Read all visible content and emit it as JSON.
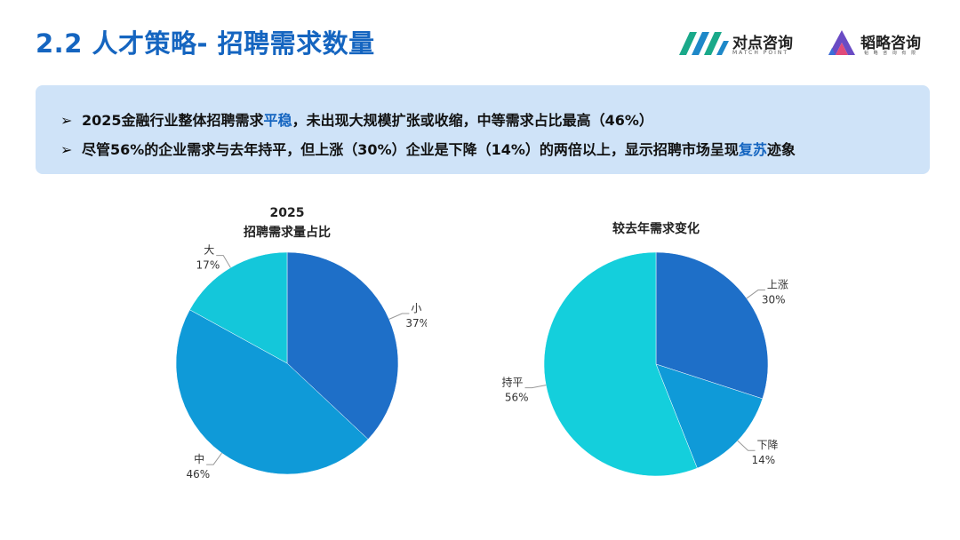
{
  "header": {
    "title": "2.2 人才策略- 招聘需求数量",
    "logo1": {
      "name": "对点咨询",
      "sub": "MATCH POINT"
    },
    "logo2": {
      "name": "韬略咨询",
      "sub": "韬 略 咨 询 有 限"
    }
  },
  "callout": {
    "bullet_marker": "➢",
    "bullet1": {
      "pre": "2025金融行业整体招聘需求",
      "hl": "平稳",
      "post": "，未出现大规模扩张或收缩，中等需求占比最高（46%）"
    },
    "bullet2": {
      "pre": "尽管56%的企业需求与去年持平，但上涨（30%）企业是下降（14%）的两倍以上，显示招聘市场呈现",
      "hl": "复苏",
      "post": "迹象"
    }
  },
  "colors": {
    "accent": "#1565c0",
    "callout_bg": "#cfe3f8"
  },
  "chart_data": [
    {
      "type": "pie",
      "title_line1": "2025",
      "title_line2": "招聘需求量占比",
      "slices": [
        {
          "label": "小",
          "value": 37,
          "pct": "37%",
          "color": "#1e6fc8"
        },
        {
          "label": "中",
          "value": 46,
          "pct": "46%",
          "color": "#0f9ad8"
        },
        {
          "label": "大",
          "value": 17,
          "pct": "17%",
          "color": "#14c7da"
        }
      ]
    },
    {
      "type": "pie",
      "title_line1": "",
      "title_line2": "较去年需求变化",
      "slices": [
        {
          "label": "上涨",
          "value": 30,
          "pct": "30%",
          "color": "#1e6fc8"
        },
        {
          "label": "下降",
          "value": 14,
          "pct": "14%",
          "color": "#0f9ad8"
        },
        {
          "label": "持平",
          "value": 56,
          "pct": "56%",
          "color": "#14cfdc"
        }
      ]
    }
  ]
}
